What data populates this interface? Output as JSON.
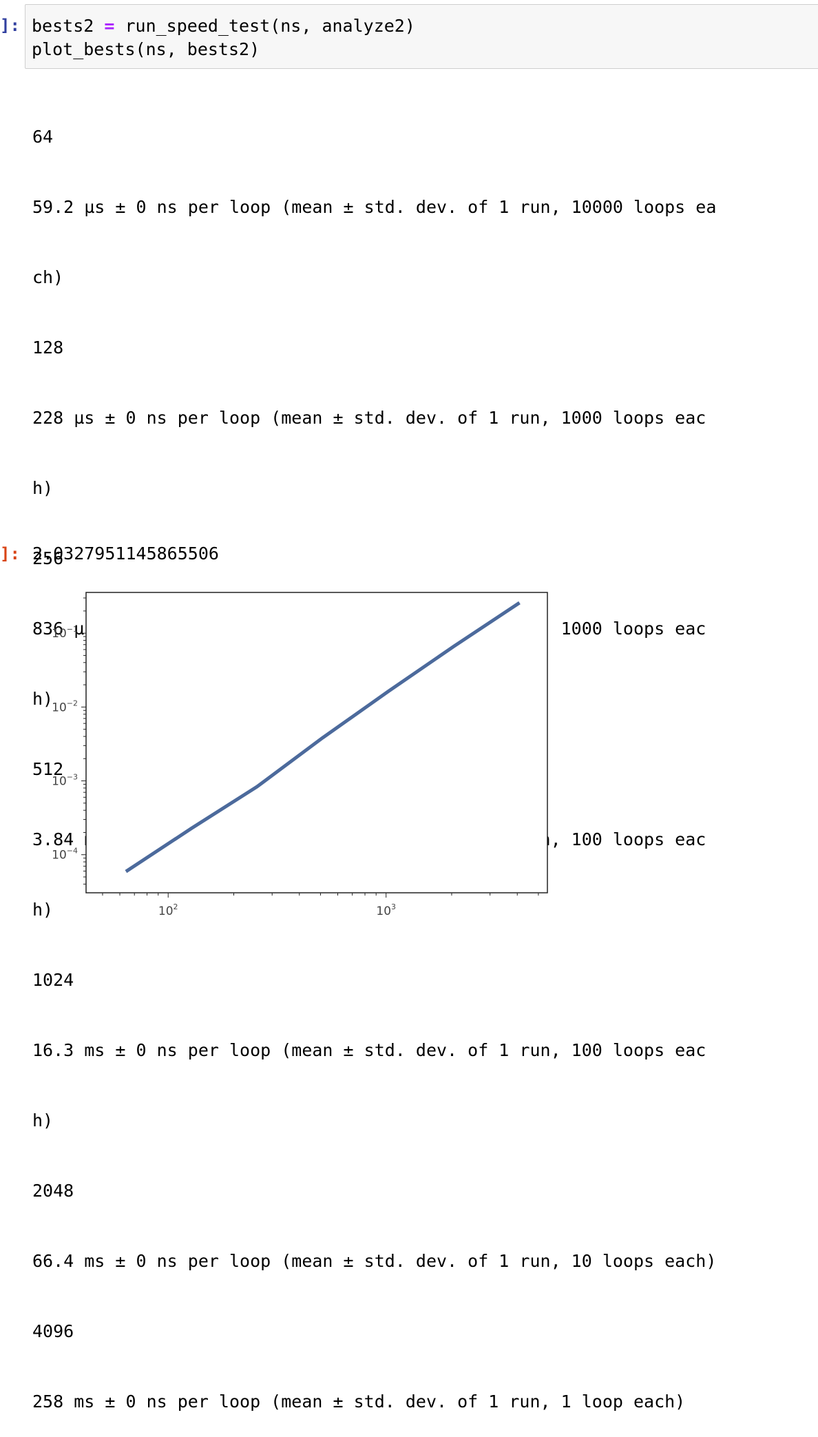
{
  "input_prompt": "]:",
  "output_prompt": "]:",
  "code": {
    "line1": {
      "a": "bests2 ",
      "op": "=",
      "b": " run_speed_test(ns, analyze2)"
    },
    "line2": "plot_bests(ns, bests2)"
  },
  "stream_lines": [
    "64",
    "59.2 µs ± 0 ns per loop (mean ± std. dev. of 1 run, 10000 loops ea",
    "ch)",
    "128",
    "228 µs ± 0 ns per loop (mean ± std. dev. of 1 run, 1000 loops eac",
    "h)",
    "256",
    "836 µs ± 0 ns per loop (mean ± std. dev. of 1 run, 1000 loops eac",
    "h)",
    "512",
    "3.84 ms ± 0 ns per loop (mean ± std. dev. of 1 run, 100 loops eac",
    "h)",
    "1024",
    "16.3 ms ± 0 ns per loop (mean ± std. dev. of 1 run, 100 loops eac",
    "h)",
    "2048",
    "66.4 ms ± 0 ns per loop (mean ± std. dev. of 1 run, 10 loops each)",
    "4096",
    "258 ms ± 0 ns per loop (mean ± std. dev. of 1 run, 1 loop each)"
  ],
  "result_value": "2.0327951145865506",
  "chart_data": {
    "type": "line",
    "x_scale": "log",
    "y_scale": "log",
    "x": [
      64,
      128,
      256,
      512,
      1024,
      2048,
      4096
    ],
    "y": [
      5.92e-05,
      0.000228,
      0.000836,
      0.00384,
      0.0163,
      0.0664,
      0.258
    ],
    "xlim": [
      42,
      5500
    ],
    "ylim": [
      3.05e-05,
      0.3564
    ],
    "x_ticks": [
      {
        "base": "10",
        "exp": "2",
        "value": 100
      },
      {
        "base": "10",
        "exp": "3",
        "value": 1000
      }
    ],
    "y_ticks": [
      {
        "base": "10",
        "exp": "−1",
        "value": 0.1
      },
      {
        "base": "10",
        "exp": "−2",
        "value": 0.01
      },
      {
        "base": "10",
        "exp": "−3",
        "value": 0.001
      },
      {
        "base": "10",
        "exp": "−4",
        "value": 0.0001
      }
    ],
    "line_color": "#4c6a9c",
    "grid": false,
    "title": "",
    "xlabel": "",
    "ylabel": ""
  }
}
